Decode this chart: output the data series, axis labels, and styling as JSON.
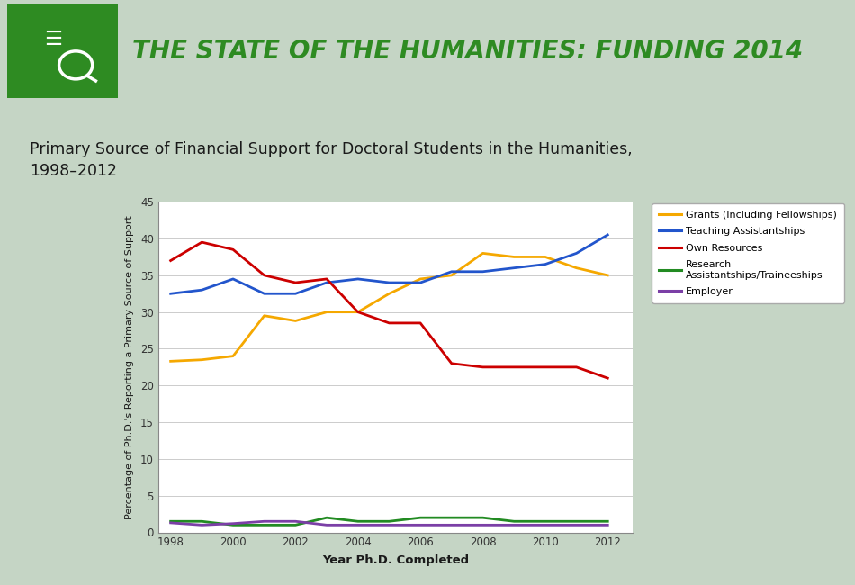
{
  "title_banner": "THE STATE OF THE HUMANITIES: FUNDING 2014",
  "chart_title": "Primary Source of Financial Support for Doctoral Students in the Humanities,\n1998–2012",
  "xlabel": "Year Ph.D. Completed",
  "ylabel": "Percentage of Ph.D.'s Reporting a Primary Source of Support",
  "years": [
    1998,
    1999,
    2000,
    2001,
    2002,
    2003,
    2004,
    2005,
    2006,
    2007,
    2008,
    2009,
    2010,
    2011,
    2012
  ],
  "grants": [
    23.3,
    23.5,
    24.0,
    29.5,
    28.8,
    30.0,
    30.0,
    32.5,
    34.5,
    35.0,
    38.0,
    37.5,
    37.5,
    36.0,
    35.0
  ],
  "teaching": [
    32.5,
    33.0,
    34.5,
    32.5,
    32.5,
    34.0,
    34.5,
    34.0,
    34.0,
    35.5,
    35.5,
    36.0,
    36.5,
    38.0,
    40.5
  ],
  "own_resources": [
    37.0,
    39.5,
    38.5,
    35.0,
    34.0,
    34.5,
    30.0,
    28.5,
    28.5,
    23.0,
    22.5,
    22.5,
    22.5,
    22.5,
    21.0
  ],
  "research": [
    1.5,
    1.5,
    1.0,
    1.0,
    1.0,
    2.0,
    1.5,
    1.5,
    2.0,
    2.0,
    2.0,
    1.5,
    1.5,
    1.5,
    1.5
  ],
  "employer": [
    1.3,
    1.0,
    1.2,
    1.5,
    1.5,
    1.0,
    1.0,
    1.0,
    1.0,
    1.0,
    1.0,
    1.0,
    1.0,
    1.0,
    1.0
  ],
  "color_grants": "#F5A800",
  "color_teaching": "#2255CC",
  "color_own": "#CC0000",
  "color_research": "#228B22",
  "color_employer": "#7B3FA6",
  "banner_bg": "#252525",
  "banner_green": "#2E8B22",
  "stripe_green": "#228B22",
  "body_bg": "#C5D5C5",
  "plot_bg": "#FFFFFF",
  "ylim": [
    0,
    45
  ],
  "yticks": [
    0,
    5,
    10,
    15,
    20,
    25,
    30,
    35,
    40,
    45
  ],
  "xticks": [
    1998,
    2000,
    2002,
    2004,
    2006,
    2008,
    2010,
    2012
  ]
}
